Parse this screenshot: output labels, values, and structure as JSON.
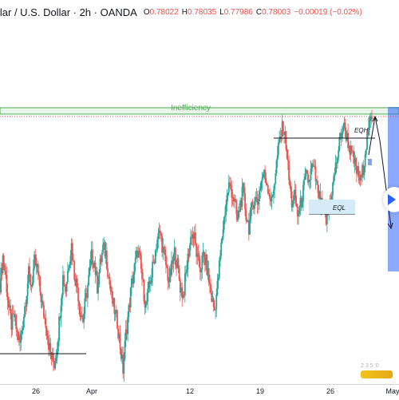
{
  "header": {
    "symbol_title": "llar / U.S. Dollar · 2h · OANDA",
    "ohlc": [
      {
        "key": "O",
        "value": "0.78022"
      },
      {
        "key": "H",
        "value": "0.78035"
      },
      {
        "key": "L",
        "value": "0.77986"
      },
      {
        "key": "C",
        "value": "0.78003"
      },
      {
        "key": "",
        "value": "−0.00019 (−0.02%)"
      }
    ]
  },
  "annotations": {
    "inefficiency": "Inefficiency",
    "eqh": "EQH",
    "eql": "EQL"
  },
  "colors": {
    "bull": "#26a69a",
    "bear": "#ef5350",
    "inefficiency_zone": "#4caf50",
    "projection_box": "#2962ff",
    "price_line": "#ef5350"
  },
  "icons": {
    "play": "play-icon",
    "watermark": "tradingview-logo"
  },
  "watermark_text": "2 3 5 '0",
  "chart_data": {
    "type": "candlestick",
    "title": "",
    "x_ticks": [
      "26",
      "Apr",
      "12",
      "19",
      "26",
      "May"
    ],
    "price_path": [
      0.7722,
      0.7745,
      0.7728,
      0.7702,
      0.7688,
      0.7695,
      0.768,
      0.7672,
      0.769,
      0.771,
      0.773,
      0.7721,
      0.774,
      0.7735,
      0.7716,
      0.77,
      0.769,
      0.7672,
      0.766,
      0.7655,
      0.767,
      0.77,
      0.7728,
      0.7718,
      0.774,
      0.7755,
      0.773,
      0.772,
      0.77,
      0.7692,
      0.771,
      0.7726,
      0.7745,
      0.774,
      0.772,
      0.7738,
      0.7752,
      0.7748,
      0.7728,
      0.771,
      0.77,
      0.769,
      0.767,
      0.765,
      0.768,
      0.77,
      0.7722,
      0.7735,
      0.775,
      0.774,
      0.772,
      0.7702,
      0.7718,
      0.773,
      0.7745,
      0.776,
      0.7765,
      0.775,
      0.7738,
      0.7725,
      0.7735,
      0.7748,
      0.7738,
      0.772,
      0.7712,
      0.773,
      0.775,
      0.7765,
      0.776,
      0.7742,
      0.7735,
      0.7745,
      0.774,
      0.7725,
      0.771,
      0.77,
      0.772,
      0.7745,
      0.777,
      0.779,
      0.7805,
      0.78,
      0.779,
      0.7775,
      0.779,
      0.78,
      0.778,
      0.777,
      0.7785,
      0.7795,
      0.779,
      0.7805,
      0.7815,
      0.781,
      0.78,
      0.779,
      0.781,
      0.783,
      0.7845,
      0.7855,
      0.784,
      0.781,
      0.779,
      0.7795,
      0.778,
      0.7788,
      0.78,
      0.7812,
      0.7808,
      0.782,
      0.7815,
      0.78,
      0.779,
      0.7782,
      0.7775,
      0.7785,
      0.78,
      0.7815,
      0.783,
      0.7845,
      0.7855,
      0.7848,
      0.7838,
      0.783,
      0.7822,
      0.7815,
      0.7808,
      0.782,
      0.784,
      0.7855,
      0.786
    ],
    "levels": {
      "inefficiency_high": 0.787,
      "inefficiency_low": 0.7865,
      "eqh": 0.7858,
      "eql": 0.7803,
      "current_price": 0.78003
    }
  }
}
